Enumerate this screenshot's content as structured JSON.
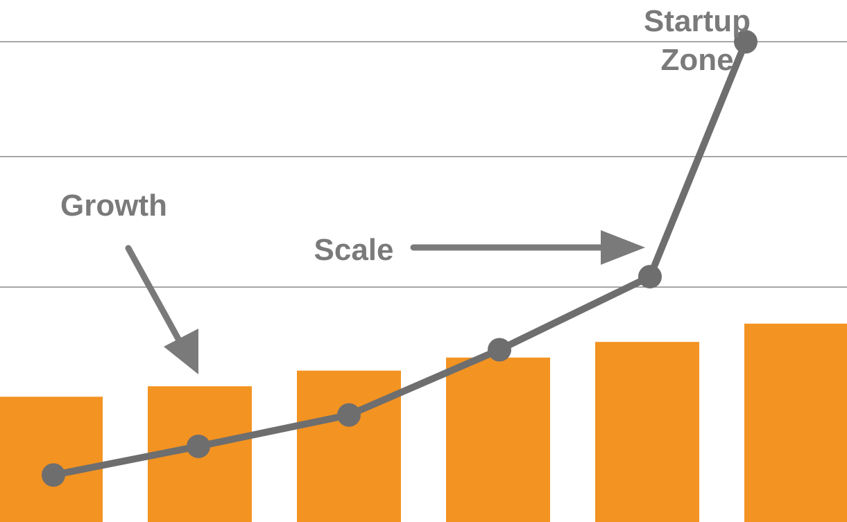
{
  "chart_data": {
    "type": "bar",
    "title": "",
    "xlabel": "",
    "ylabel": "",
    "grid": true,
    "legend": "none",
    "ylim": [
      0,
      100
    ],
    "gridlines": [
      45,
      70,
      92
    ],
    "bar_values": [
      24,
      26,
      29,
      31.5,
      34.5,
      38
    ],
    "line_values": [
      9,
      14.5,
      20.5,
      33,
      47,
      92
    ],
    "annotations": {
      "growth": "Growth",
      "scale": "Scale",
      "startup_line1": "Startup",
      "startup_line2": "Zone"
    },
    "colors": {
      "bar": "#f39322",
      "line": "#6e6e6e",
      "grid": "#8a8a8a",
      "arrow": "#7a7a7a",
      "text": "#7a7a7a"
    }
  }
}
